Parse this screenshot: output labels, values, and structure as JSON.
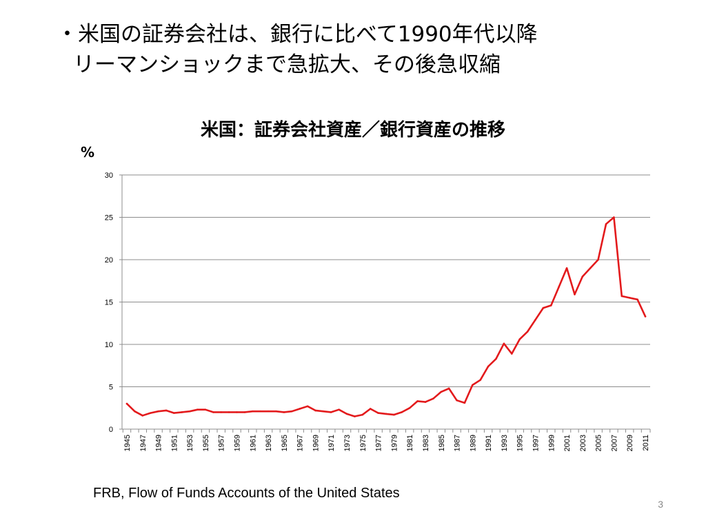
{
  "slide": {
    "bullet_line1": "・米国の証券会社は、銀行に比べて1990年代以降",
    "bullet_line2": "リーマンショックまで急拡大、その後急収縮",
    "source": "FRB, Flow of Funds Accounts of the United States",
    "page_number": "3"
  },
  "chart_data": {
    "type": "line",
    "title": "米国：証券会社資産／銀行資産の推移",
    "ylabel": "%",
    "xlabel": "",
    "ylim": [
      0,
      30
    ],
    "yticks": [
      0,
      5,
      10,
      15,
      20,
      25,
      30
    ],
    "grid": true,
    "legend": "none",
    "x": [
      1945,
      1946,
      1947,
      1948,
      1949,
      1950,
      1951,
      1952,
      1953,
      1954,
      1955,
      1956,
      1957,
      1958,
      1959,
      1960,
      1961,
      1962,
      1963,
      1964,
      1965,
      1966,
      1967,
      1968,
      1969,
      1970,
      1971,
      1972,
      1973,
      1974,
      1975,
      1976,
      1977,
      1978,
      1979,
      1980,
      1981,
      1982,
      1983,
      1984,
      1985,
      1986,
      1987,
      1988,
      1989,
      1990,
      1991,
      1992,
      1993,
      1994,
      1995,
      1996,
      1997,
      1998,
      1999,
      2000,
      2001,
      2002,
      2003,
      2004,
      2005,
      2006,
      2007,
      2008,
      2009,
      2010,
      2011
    ],
    "xticks": [
      "1945",
      "1947",
      "1949",
      "1951",
      "1953",
      "1955",
      "1957",
      "1959",
      "1961",
      "1963",
      "1965",
      "1967",
      "1969",
      "1971",
      "1973",
      "1975",
      "1977",
      "1979",
      "1981",
      "1983",
      "1985",
      "1987",
      "1989",
      "1991",
      "1993",
      "1995",
      "1997",
      "1999",
      "2001",
      "2003",
      "2005",
      "2007",
      "2009",
      "2011"
    ],
    "series": [
      {
        "color": "#e31a1c",
        "values": [
          3.0,
          2.1,
          1.6,
          1.9,
          2.1,
          2.2,
          1.9,
          2.0,
          2.1,
          2.3,
          2.3,
          2.0,
          2.0,
          2.0,
          2.0,
          2.0,
          2.1,
          2.1,
          2.1,
          2.1,
          2.0,
          2.1,
          2.4,
          2.7,
          2.2,
          2.1,
          2.0,
          2.3,
          1.8,
          1.5,
          1.7,
          2.4,
          1.9,
          1.8,
          1.7,
          2.0,
          2.5,
          3.3,
          3.2,
          3.6,
          4.4,
          4.8,
          3.4,
          3.1,
          5.2,
          5.8,
          7.4,
          8.3,
          10.1,
          8.9,
          10.6,
          11.5,
          12.9,
          14.3,
          14.6,
          16.8,
          19.0,
          15.9,
          18.0,
          19.0,
          20.0,
          24.2,
          25.0,
          15.7,
          15.5,
          15.3,
          13.3
        ]
      }
    ]
  }
}
